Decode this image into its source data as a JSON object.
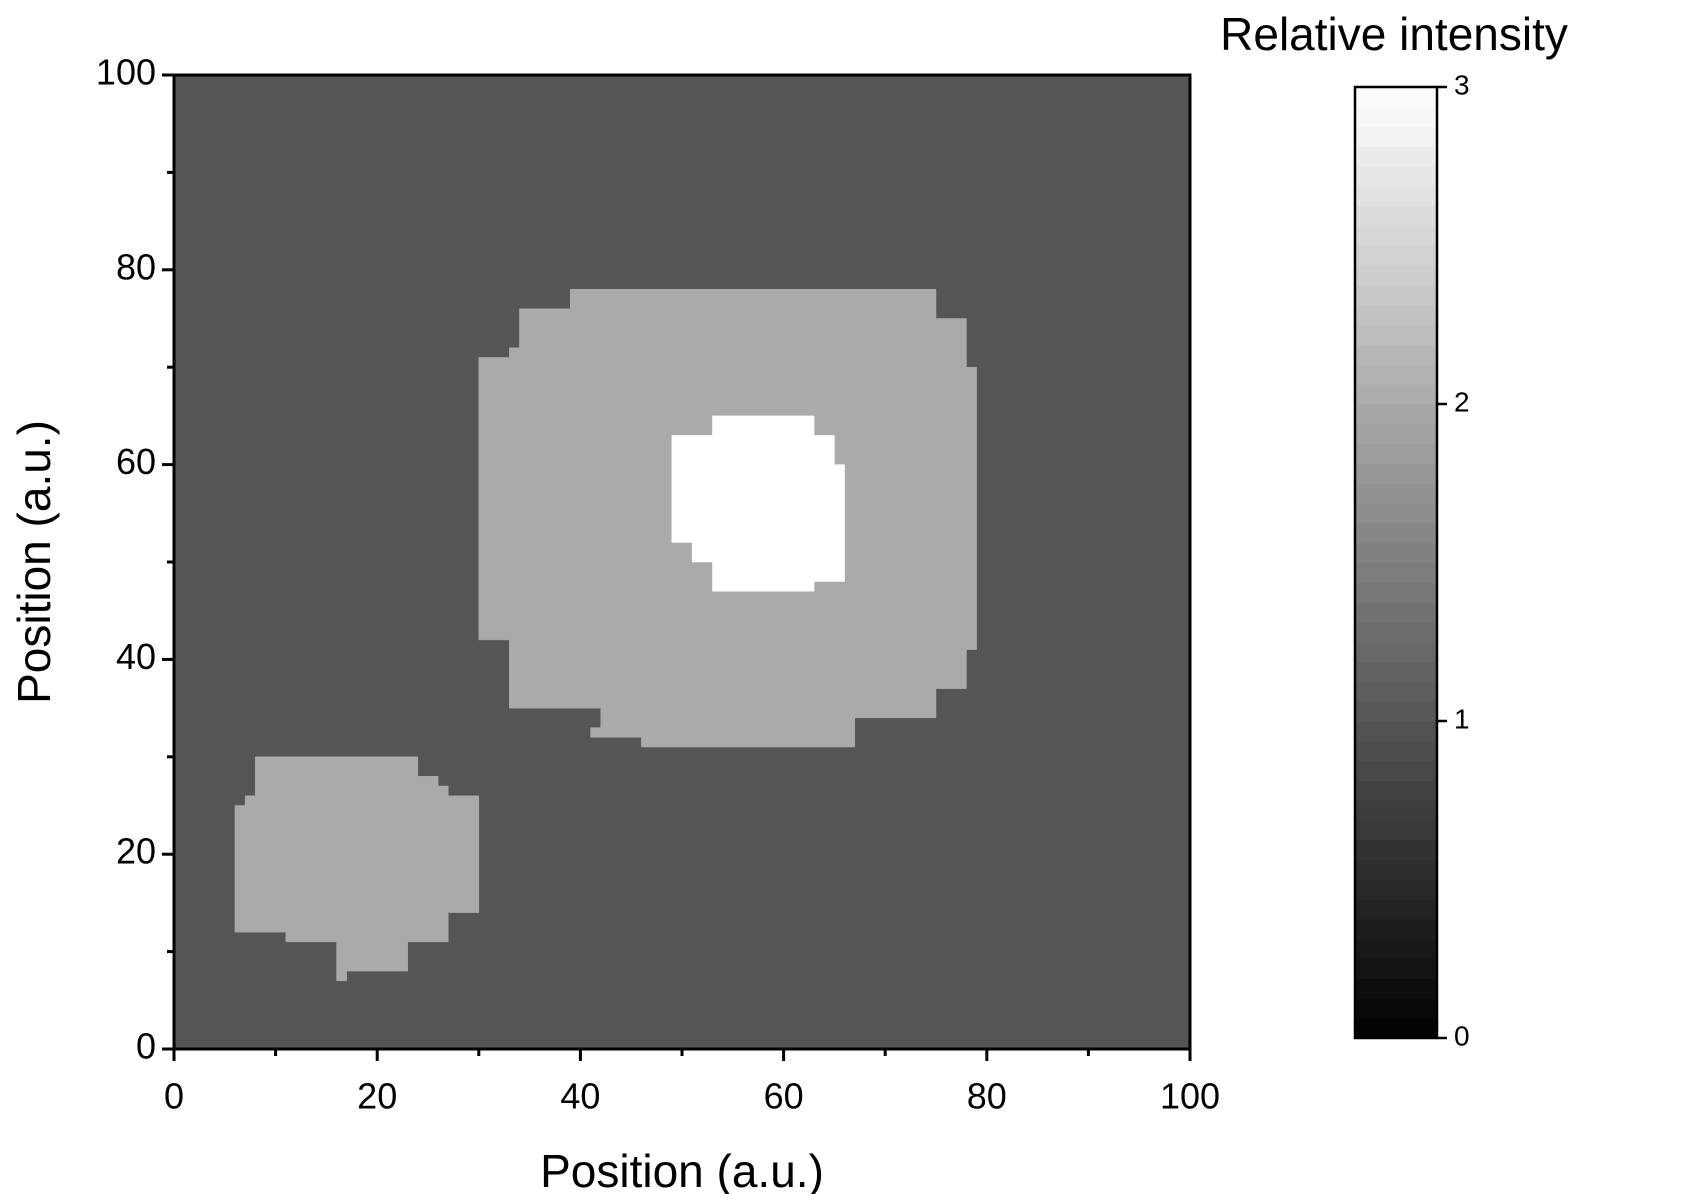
{
  "chart_data": {
    "type": "heatmap",
    "xlabel": "Position (a.u.)",
    "ylabel": "Position (a.u.)",
    "colorbar_title": "Relative intensity",
    "xlim": [
      0,
      100
    ],
    "ylim": [
      0,
      100
    ],
    "xticks": [
      0,
      20,
      40,
      60,
      80,
      100
    ],
    "yticks": [
      0,
      20,
      40,
      60,
      80,
      100
    ],
    "zlim": [
      0,
      3
    ],
    "zticks": [
      0,
      1,
      2,
      3
    ],
    "colormap": [
      "#000000",
      "#ffffff"
    ],
    "regions": [
      {
        "value": 1,
        "polygon": [
          [
            0,
            0
          ],
          [
            100,
            0
          ],
          [
            100,
            100
          ],
          [
            0,
            100
          ]
        ]
      },
      {
        "value": 2,
        "polygon": [
          [
            39,
            78
          ],
          [
            75,
            78
          ],
          [
            75,
            75
          ],
          [
            78,
            75
          ],
          [
            78,
            70
          ],
          [
            79,
            70
          ],
          [
            79,
            41
          ],
          [
            78,
            41
          ],
          [
            78,
            37
          ],
          [
            75,
            37
          ],
          [
            75,
            34
          ],
          [
            67,
            34
          ],
          [
            67,
            31
          ],
          [
            46,
            31
          ],
          [
            46,
            32
          ],
          [
            41,
            32
          ],
          [
            41,
            33
          ],
          [
            42,
            33
          ],
          [
            42,
            35
          ],
          [
            33,
            35
          ],
          [
            33,
            42
          ],
          [
            30,
            42
          ],
          [
            30,
            71
          ],
          [
            33,
            71
          ],
          [
            33,
            72
          ],
          [
            34,
            72
          ],
          [
            34,
            76
          ],
          [
            39,
            76
          ]
        ]
      },
      {
        "value": 3,
        "polygon": [
          [
            53,
            65
          ],
          [
            63,
            65
          ],
          [
            63,
            63
          ],
          [
            65,
            63
          ],
          [
            65,
            60
          ],
          [
            66,
            60
          ],
          [
            66,
            48
          ],
          [
            63,
            48
          ],
          [
            63,
            47
          ],
          [
            53,
            47
          ],
          [
            53,
            50
          ],
          [
            51,
            50
          ],
          [
            51,
            52
          ],
          [
            49,
            52
          ],
          [
            49,
            63
          ],
          [
            53,
            63
          ]
        ]
      },
      {
        "value": 2,
        "polygon": [
          [
            8,
            30
          ],
          [
            24,
            30
          ],
          [
            24,
            28
          ],
          [
            26,
            28
          ],
          [
            26,
            27
          ],
          [
            27,
            27
          ],
          [
            27,
            26
          ],
          [
            30,
            26
          ],
          [
            30,
            14
          ],
          [
            27,
            14
          ],
          [
            27,
            11
          ],
          [
            23,
            11
          ],
          [
            23,
            8
          ],
          [
            17,
            8
          ],
          [
            17,
            7
          ],
          [
            16,
            7
          ],
          [
            16,
            11
          ],
          [
            11,
            11
          ],
          [
            11,
            12
          ],
          [
            6,
            12
          ],
          [
            6,
            25
          ],
          [
            7,
            25
          ],
          [
            7,
            26
          ],
          [
            8,
            26
          ]
        ]
      }
    ]
  }
}
